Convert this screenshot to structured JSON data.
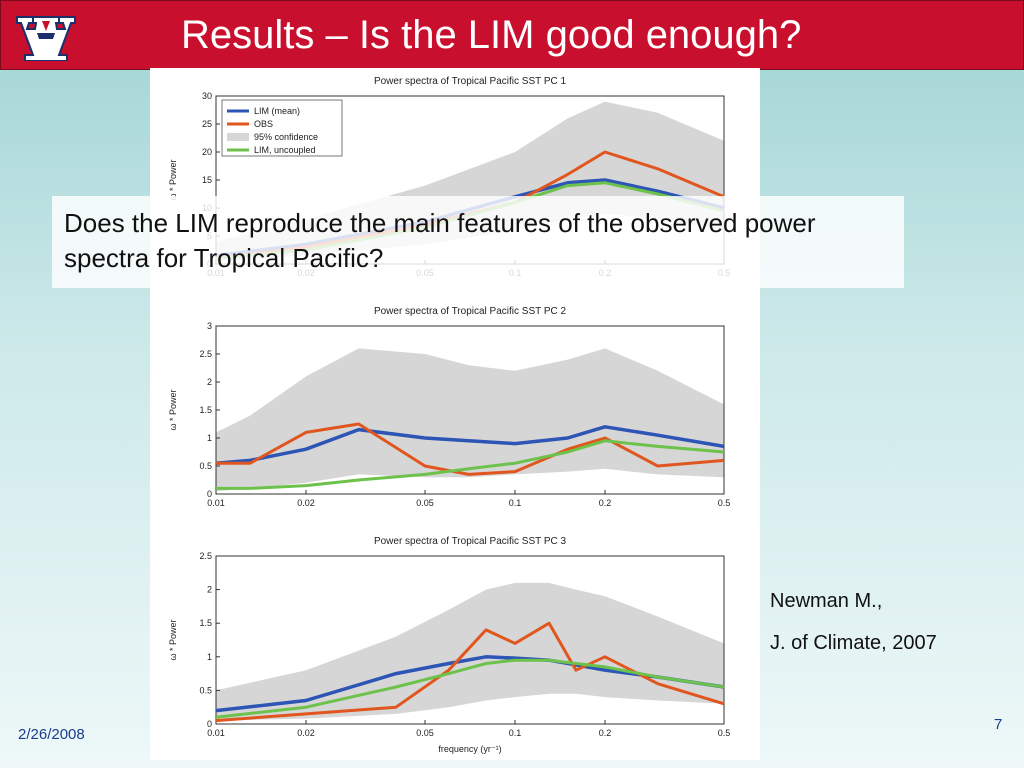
{
  "slide": {
    "title": "Results – Is the LIM good enough?",
    "callout": "Does the LIM reproduce the main features of the observed power spectra for Tropical Pacific?",
    "citation_line1": "Newman M.,",
    "citation_line2": "J. of Climate, 2007",
    "date": "2/26/2008",
    "page_number": "7"
  },
  "colors": {
    "header": "#c8102e",
    "lim_mean": "#2d55b5",
    "obs": "#e0561e",
    "confidence": "#d6d6d6",
    "lim_uncoupled": "#6cc24a"
  },
  "icons": {
    "logo": "university-of-arizona-a-logo"
  },
  "chart_data": [
    {
      "type": "line",
      "title": "Power spectra of Tropical Pacific SST PC 1",
      "xlabel": "",
      "ylabel": "ω * Power",
      "xscale": "log",
      "xlim": [
        0.01,
        0.5
      ],
      "ylim": [
        0,
        30
      ],
      "x_ticks": [
        "0.01",
        "0.02",
        "0.05",
        "0.1",
        "0.2",
        "0.5"
      ],
      "y_ticks": [
        "0",
        "5",
        "10",
        "15",
        "20",
        "25",
        "30"
      ],
      "legend": [
        "LIM (mean)",
        "OBS",
        "95% confidence",
        "LIM, uncoupled"
      ],
      "legend_position": "top-left",
      "x": [
        0.01,
        0.02,
        0.05,
        0.1,
        0.15,
        0.2,
        0.3,
        0.5
      ],
      "series": [
        {
          "name": "LIM (mean)",
          "values": [
            1.5,
            3.5,
            7.5,
            12,
            14.5,
            15,
            13,
            10
          ]
        },
        {
          "name": "OBS",
          "values": [
            1,
            3,
            7,
            11,
            16,
            20,
            17,
            12
          ]
        },
        {
          "name": "LIM, uncoupled",
          "values": [
            1,
            2.5,
            6.5,
            11,
            14,
            14.5,
            12.5,
            9.5
          ]
        }
      ],
      "confidence_band": {
        "lower": [
          0.5,
          1.5,
          3.5,
          6,
          8,
          9,
          8,
          6
        ],
        "upper": [
          4,
          8,
          14,
          20,
          26,
          29,
          27,
          22
        ]
      }
    },
    {
      "type": "line",
      "title": "Power spectra of Tropical Pacific SST PC 2",
      "xlabel": "",
      "ylabel": "ω * Power",
      "xscale": "log",
      "xlim": [
        0.01,
        0.5
      ],
      "ylim": [
        0,
        3
      ],
      "x_ticks": [
        "0.01",
        "0.02",
        "0.05",
        "0.1",
        "0.2",
        "0.5"
      ],
      "y_ticks": [
        "0",
        "0.5",
        "1",
        "1.5",
        "2",
        "2.5",
        "3"
      ],
      "x": [
        0.01,
        0.013,
        0.02,
        0.03,
        0.05,
        0.07,
        0.1,
        0.15,
        0.2,
        0.3,
        0.5
      ],
      "series": [
        {
          "name": "LIM (mean)",
          "values": [
            0.55,
            0.6,
            0.8,
            1.15,
            1.0,
            0.95,
            0.9,
            1.0,
            1.2,
            1.05,
            0.85
          ]
        },
        {
          "name": "OBS",
          "values": [
            0.55,
            0.55,
            1.1,
            1.25,
            0.5,
            0.35,
            0.4,
            0.8,
            1.0,
            0.5,
            0.6
          ]
        },
        {
          "name": "LIM, uncoupled",
          "values": [
            0.1,
            0.1,
            0.15,
            0.25,
            0.35,
            0.45,
            0.55,
            0.75,
            0.95,
            0.85,
            0.75
          ]
        }
      ],
      "confidence_band": {
        "lower": [
          0.05,
          0.1,
          0.2,
          0.35,
          0.3,
          0.3,
          0.35,
          0.4,
          0.45,
          0.35,
          0.3
        ],
        "upper": [
          1.1,
          1.4,
          2.1,
          2.6,
          2.5,
          2.3,
          2.2,
          2.4,
          2.6,
          2.2,
          1.6
        ]
      }
    },
    {
      "type": "line",
      "title": "Power spectra of Tropical Pacific SST PC 3",
      "xlabel": "frequency (yr⁻¹)",
      "ylabel": "ω * Power",
      "xscale": "log",
      "xlim": [
        0.01,
        0.5
      ],
      "ylim": [
        0,
        2.5
      ],
      "x_ticks": [
        "0.01",
        "0.02",
        "0.05",
        "0.1",
        "0.2",
        "0.5"
      ],
      "y_ticks": [
        "0",
        "0.5",
        "1",
        "1.5",
        "2",
        "2.5"
      ],
      "x": [
        0.01,
        0.02,
        0.04,
        0.06,
        0.08,
        0.1,
        0.13,
        0.16,
        0.2,
        0.3,
        0.5
      ],
      "series": [
        {
          "name": "LIM (mean)",
          "values": [
            0.2,
            0.35,
            0.75,
            0.9,
            1.0,
            0.98,
            0.95,
            0.88,
            0.8,
            0.7,
            0.55
          ]
        },
        {
          "name": "OBS",
          "values": [
            0.05,
            0.15,
            0.25,
            0.8,
            1.4,
            1.2,
            1.5,
            0.8,
            1.0,
            0.6,
            0.3
          ]
        },
        {
          "name": "LIM, uncoupled",
          "values": [
            0.1,
            0.25,
            0.55,
            0.75,
            0.9,
            0.95,
            0.95,
            0.9,
            0.85,
            0.7,
            0.55
          ]
        }
      ],
      "confidence_band": {
        "lower": [
          0.05,
          0.08,
          0.15,
          0.25,
          0.35,
          0.4,
          0.45,
          0.45,
          0.4,
          0.35,
          0.3
        ],
        "upper": [
          0.5,
          0.8,
          1.3,
          1.7,
          2.0,
          2.1,
          2.1,
          2.0,
          1.9,
          1.6,
          1.2
        ]
      }
    }
  ]
}
